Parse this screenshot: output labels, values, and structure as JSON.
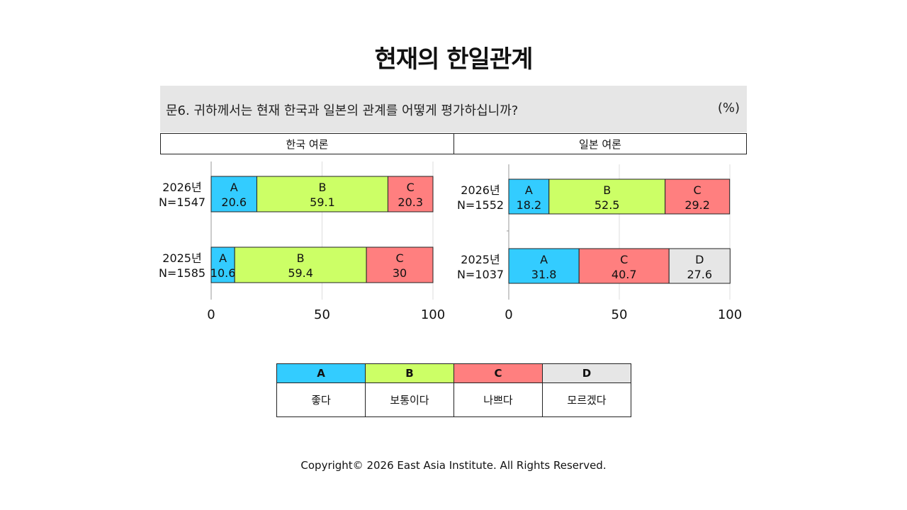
{
  "header": {
    "title": "현재의 한일관계",
    "question": "문6. 귀하께서는 현재 한국과 일본의 관계를 어떻게 평가하십니까?",
    "unit": "(%)"
  },
  "panels": {
    "korea": "한국 여론",
    "japan": "일본 여론"
  },
  "legend": {
    "items": [
      {
        "code": "A",
        "label": "좋다",
        "color": "#33ccff"
      },
      {
        "code": "B",
        "label": "보통이다",
        "color": "#ccff66"
      },
      {
        "code": "C",
        "label": "나쁘다",
        "color": "#ff7f7f"
      },
      {
        "code": "D",
        "label": "모르겠다",
        "color": "#e6e6e6"
      }
    ]
  },
  "footer": {
    "copyright": "Copyright© 2026 East Asia Institute. All Rights Reserved."
  },
  "chart_data": [
    {
      "type": "bar",
      "orientation": "horizontal",
      "stacked": true,
      "title": "한국 여론",
      "xlim": [
        0,
        100
      ],
      "xticks": [
        0,
        50,
        100
      ],
      "grid": true,
      "rows": [
        {
          "year": "2026년",
          "n": "N=1547",
          "segments": [
            {
              "code": "A",
              "value": 20.6
            },
            {
              "code": "B",
              "value": 59.1
            },
            {
              "code": "C",
              "value": 20.3
            }
          ]
        },
        {
          "year": "2025년",
          "n": "N=1585",
          "segments": [
            {
              "code": "A",
              "value": 10.6
            },
            {
              "code": "B",
              "value": 59.4
            },
            {
              "code": "C",
              "value": 30
            }
          ]
        }
      ]
    },
    {
      "type": "bar",
      "orientation": "horizontal",
      "stacked": true,
      "title": "일본 여론",
      "xlim": [
        0,
        100
      ],
      "xticks": [
        0,
        50,
        100
      ],
      "grid": true,
      "rows": [
        {
          "year": "2026년",
          "n": "N=1552",
          "segments": [
            {
              "code": "A",
              "value": 18.2
            },
            {
              "code": "B",
              "value": 52.5
            },
            {
              "code": "C",
              "value": 29.2
            }
          ]
        },
        {
          "year": "2025년",
          "n": "N=1037",
          "segments": [
            {
              "code": "A",
              "value": 31.8
            },
            {
              "code": "C",
              "value": 40.7
            },
            {
              "code": "D",
              "value": 27.6
            }
          ]
        }
      ]
    }
  ]
}
